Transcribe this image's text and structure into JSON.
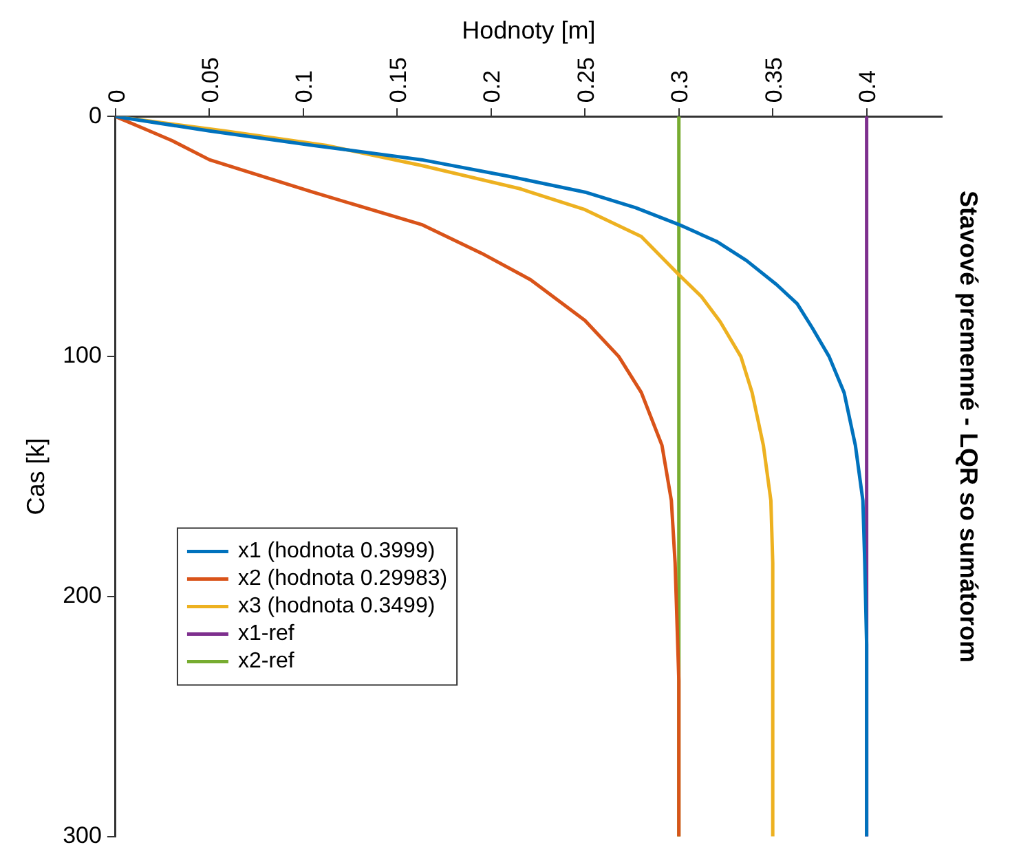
{
  "chart_data": {
    "type": "line",
    "orientation": "horizontal",
    "title": "Stavové premenné - LQR so sumátorom",
    "xlabel": "Hodnoty [m]",
    "ylabel": "Cas [k]",
    "xlim": [
      0,
      0.44
    ],
    "xticks": [
      0,
      0.05,
      0.1,
      0.15,
      0.2,
      0.25,
      0.3,
      0.35,
      0.4
    ],
    "ylim": [
      300,
      0
    ],
    "yticks": [
      0,
      100,
      200,
      300
    ],
    "grid": false,
    "legend": "bottom left",
    "marker": "none",
    "line_style": "solid",
    "series": [
      {
        "name": "x1 (hodnota 0.3999)",
        "color": "#0072bd",
        "x": [
          0,
          6,
          12,
          18,
          25,
          31.5,
          38,
          45,
          52,
          60,
          70,
          78,
          88,
          100,
          115,
          137,
          160,
          186,
          220,
          300
        ],
        "values": [
          0,
          0.05,
          0.105,
          0.163,
          0.21,
          0.25,
          0.277,
          0.3,
          0.32,
          0.336,
          0.352,
          0.363,
          0.371,
          0.38,
          0.388,
          0.394,
          0.398,
          0.399,
          0.4,
          0.4
        ]
      },
      {
        "name": "x2 (hodnota 0.29983)",
        "color": "#d95319",
        "x": [
          0,
          5,
          10,
          18,
          31.5,
          45,
          57,
          68,
          85,
          100,
          115,
          137,
          160,
          186,
          235,
          300
        ],
        "values": [
          0,
          0.015,
          0.03,
          0.05,
          0.105,
          0.163,
          0.195,
          0.221,
          0.25,
          0.268,
          0.28,
          0.291,
          0.296,
          0.298,
          0.3,
          0.3
        ]
      },
      {
        "name": "x3 (hodnota 0.3499)",
        "color": "#edb120",
        "x": [
          0,
          6,
          12,
          20.4,
          30,
          38.8,
          50,
          65.9,
          75,
          85.5,
          100,
          115,
          137,
          160,
          186,
          220,
          300
        ],
        "values": [
          0,
          0.058,
          0.112,
          0.163,
          0.215,
          0.25,
          0.28,
          0.3,
          0.312,
          0.322,
          0.333,
          0.339,
          0.345,
          0.349,
          0.35,
          0.35,
          0.35
        ]
      },
      {
        "name": "x1-ref",
        "color": "#7e2f8e",
        "x": [
          0,
          300
        ],
        "values": [
          0.4,
          0.4
        ]
      },
      {
        "name": "x2-ref",
        "color": "#77ac30",
        "x": [
          0,
          300
        ],
        "values": [
          0.3,
          0.3
        ]
      }
    ]
  }
}
